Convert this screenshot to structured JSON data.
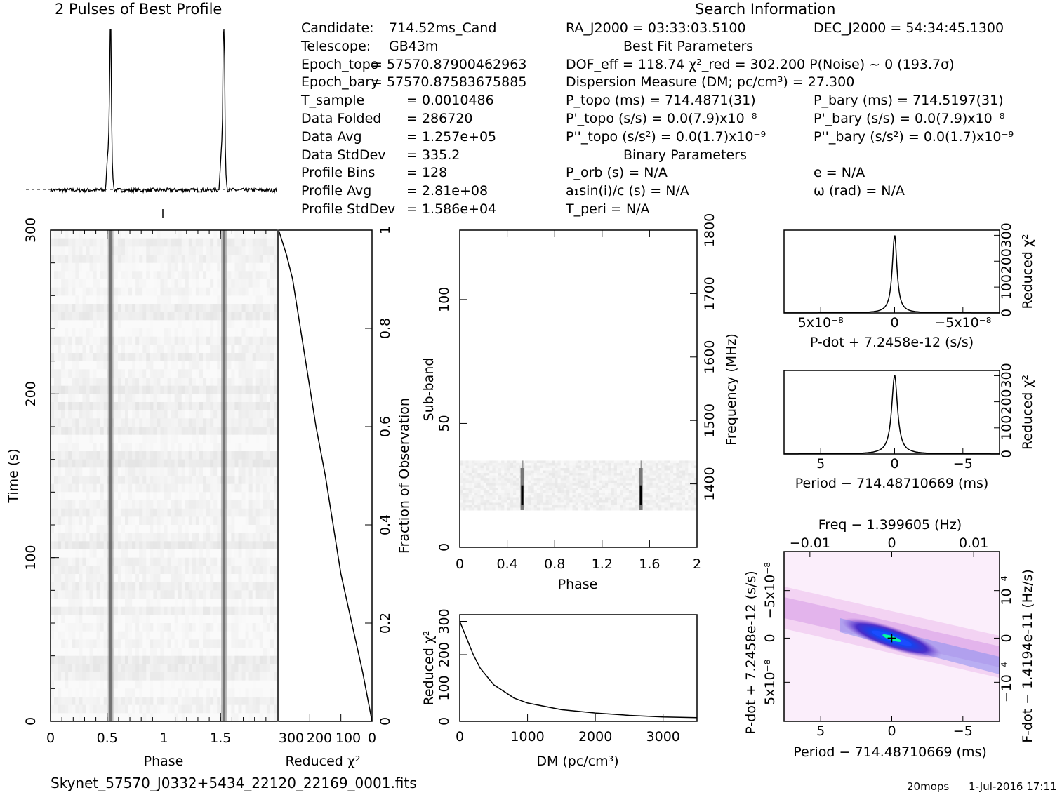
{
  "profile_title": "2 Pulses of Best Profile",
  "search_title": "Search Information",
  "file_name": "Skynet_57570_J0332+5434_22120_22169_0001.fits",
  "footer_tag": "20mops",
  "footer_date": "1-Jul-2016 17:11",
  "left_info": [
    {
      "label": "Candidate:",
      "value": "714.52ms_Cand"
    },
    {
      "label": "Telescope:",
      "value": "GB43m"
    },
    {
      "label": "Epoch_topo",
      "value": "= 57570.87900462963"
    },
    {
      "label": "Epoch_bary",
      "value": "= 57570.87583675885"
    },
    {
      "label": "T_sample",
      "value": "=  0.0010486"
    },
    {
      "label": "Data Folded",
      "value": "=  286720"
    },
    {
      "label": "Data Avg",
      "value": "=  1.257e+05"
    },
    {
      "label": "Data StdDev",
      "value": "=  335.2"
    },
    {
      "label": "Profile Bins",
      "value": "=  128"
    },
    {
      "label": "Profile Avg",
      "value": "=  2.81e+08"
    },
    {
      "label": "Profile StdDev",
      "value": "=  1.586e+04"
    }
  ],
  "mid_info": [
    "RA_J2000 = 03:33:03.5100",
    "Best Fit Parameters",
    "DOF_eff = 118.74  χ²_red = 302.200  P(Noise) ~ 0    (193.7σ)",
    "Dispersion Measure (DM; pc/cm³) = 27.300",
    "P_topo (ms) =  714.4871(31)",
    "P'_topo (s/s) = 0.0(7.9)x10⁻⁸",
    "P''_topo (s/s²) = 0.0(1.7)x10⁻⁹",
    "Binary Parameters",
    "P_orb (s) = N/A",
    "a₁sin(i)/c (s) = N/A",
    "T_peri = N/A"
  ],
  "right_info": [
    "DEC_J2000 = 54:34:45.1300",
    "P_bary (ms) =  714.5197(31)",
    "P'_bary (s/s) = 0.0(7.9)x10⁻⁸",
    "P''_bary (s/s²) = 0.0(1.7)x10⁻⁹",
    "e = N/A",
    "ω (rad) = N/A"
  ],
  "chart_data": [
    {
      "type": "line",
      "name": "profile",
      "x_range": [
        0,
        2
      ],
      "peaks": [
        0.53,
        1.53
      ],
      "baseline": "dashed"
    },
    {
      "type": "heatmap",
      "name": "time-phase",
      "xlabel": "Phase",
      "ylabel": "Time (s)",
      "xlim": [
        0,
        2
      ],
      "ylim": [
        0,
        300
      ],
      "xticks": [
        "0",
        "0.5",
        "1",
        "1.5"
      ],
      "yticks": [
        "0",
        "100",
        "200",
        "300"
      ],
      "pulse_phases": [
        0.53,
        1.53
      ]
    },
    {
      "type": "line",
      "name": "reduced-chi2-vs-fraction",
      "xlabel": "Reduced χ²",
      "ylabel": "Fraction of Observation",
      "xlim": [
        300,
        0
      ],
      "ylim": [
        0,
        1
      ],
      "xticks": [
        "300",
        "200",
        "100",
        "0"
      ],
      "yticks": [
        "0",
        "0.2",
        "0.4",
        "0.6",
        "0.8",
        "1"
      ],
      "points": [
        [
          0,
          0
        ],
        [
          30,
          0.1
        ],
        [
          65,
          0.2
        ],
        [
          100,
          0.3
        ],
        [
          125,
          0.4
        ],
        [
          150,
          0.5
        ],
        [
          180,
          0.6
        ],
        [
          205,
          0.7
        ],
        [
          230,
          0.8
        ],
        [
          255,
          0.9
        ],
        [
          275,
          0.95
        ],
        [
          300,
          1.0
        ]
      ]
    },
    {
      "type": "heatmap",
      "name": "subband-phase",
      "xlabel": "Phase",
      "ylabel": "Sub-band",
      "y2label": "Frequency (MHz)",
      "xlim": [
        0,
        2
      ],
      "ylim": [
        0,
        128
      ],
      "y2lim": [
        1300,
        1800
      ],
      "xticks": [
        "0",
        "0.4",
        "0.8",
        "1.2",
        "1.6",
        "2"
      ],
      "yticks": [
        "0",
        "50",
        "100"
      ],
      "y2ticks": [
        "1400",
        "1500",
        "1600",
        "1700",
        "1800"
      ],
      "signal_subbands": [
        15,
        35
      ],
      "pulse_phases": [
        0.53,
        1.53
      ]
    },
    {
      "type": "line",
      "name": "dm-curve",
      "xlabel": "DM (pc/cm³)",
      "ylabel": "Reduced χ²",
      "xlim": [
        0,
        3500
      ],
      "ylim": [
        0,
        320
      ],
      "xticks": [
        "0",
        "1000",
        "2000",
        "3000"
      ],
      "yticks": [
        "0",
        "100",
        "200",
        "300"
      ],
      "points": [
        [
          0,
          300
        ],
        [
          100,
          250
        ],
        [
          200,
          200
        ],
        [
          300,
          160
        ],
        [
          500,
          110
        ],
        [
          800,
          70
        ],
        [
          1000,
          55
        ],
        [
          1500,
          35
        ],
        [
          2000,
          25
        ],
        [
          2500,
          18
        ],
        [
          3000,
          13
        ],
        [
          3500,
          11
        ]
      ]
    },
    {
      "type": "line",
      "name": "pdot-curve",
      "xlabel": "P-dot + 7.2458e-12 (s/s)",
      "ylabel": "Reduced χ²",
      "xlim": [
        1e-07,
        -1e-07
      ],
      "ylim": [
        0,
        320
      ],
      "xticks": [
        "5x10⁻⁸",
        "0",
        "−5x10⁻⁸"
      ],
      "yticks": [
        "0",
        "100",
        "200",
        "300"
      ],
      "peak": 302.2
    },
    {
      "type": "line",
      "name": "period-curve",
      "xlabel": "Period − 714.48710669 (ms)",
      "ylabel": "Reduced χ²",
      "xlim": [
        7,
        -7
      ],
      "ylim": [
        0,
        320
      ],
      "xticks": [
        "5",
        "0",
        "−5"
      ],
      "yticks": [
        "0",
        "100",
        "200",
        "300"
      ],
      "peak": 302.2
    },
    {
      "type": "heatmap",
      "name": "p-pdot",
      "xlabel": "Period − 714.48710669 (ms)",
      "ylabel": "P-dot + 7.2458e-12 (s/s)",
      "x2label": "Freq − 1.399605 (Hz)",
      "y2label": "F-dot − 1.4194e-11 (Hz/s)",
      "xticks": [
        "5",
        "0",
        "−5"
      ],
      "yticks": [
        "−5x10⁻⁸",
        "0",
        "5x10⁻⁸"
      ],
      "x2ticks": [
        "−0.01",
        "0",
        "0.01"
      ],
      "y2ticks": [
        "10⁻⁴",
        "0",
        "−10⁻⁴"
      ]
    }
  ]
}
